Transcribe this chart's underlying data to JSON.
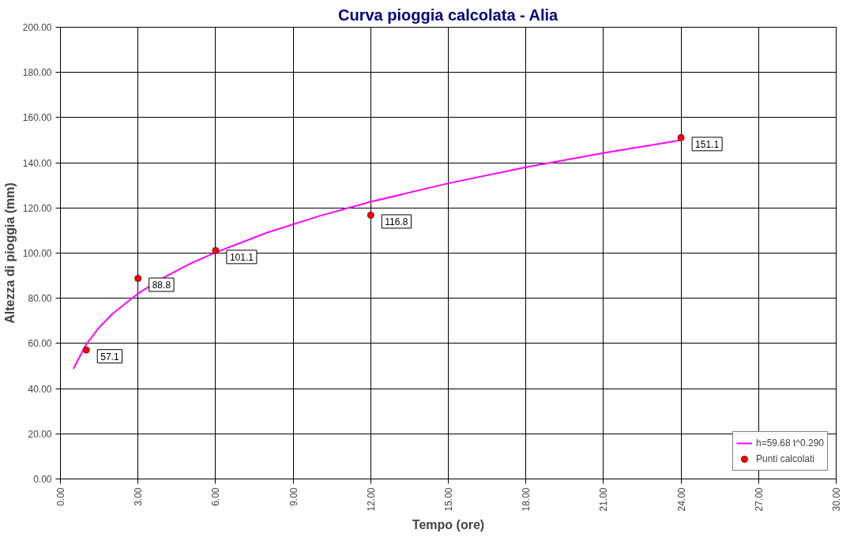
{
  "chart_data": {
    "type": "line",
    "title": "Curva pioggia calcolata - Alia",
    "xlabel": "Tempo (ore)",
    "ylabel": "Altezza di pioggia (mm)",
    "xlim": [
      0,
      30
    ],
    "ylim": [
      0,
      200
    ],
    "xticks": [
      {
        "value": 0,
        "label": "0.00"
      },
      {
        "value": 3,
        "label": "3.00"
      },
      {
        "value": 6,
        "label": "6.00"
      },
      {
        "value": 9,
        "label": "9.00"
      },
      {
        "value": 12,
        "label": "12.00"
      },
      {
        "value": 15,
        "label": "15.00"
      },
      {
        "value": 18,
        "label": "18.00"
      },
      {
        "value": 21,
        "label": "21.00"
      },
      {
        "value": 24,
        "label": "24.00"
      },
      {
        "value": 27,
        "label": "27.00"
      },
      {
        "value": 30,
        "label": "30.00"
      }
    ],
    "yticks": [
      {
        "value": 0,
        "label": "0.00"
      },
      {
        "value": 20,
        "label": "20.00"
      },
      {
        "value": 40,
        "label": "40.00"
      },
      {
        "value": 60,
        "label": "60.00"
      },
      {
        "value": 80,
        "label": "80.00"
      },
      {
        "value": 100,
        "label": "100.00"
      },
      {
        "value": 120,
        "label": "120.00"
      },
      {
        "value": 140,
        "label": "140.00"
      },
      {
        "value": 160,
        "label": "160.00"
      },
      {
        "value": 180,
        "label": "180.00"
      },
      {
        "value": 200,
        "label": "200.00"
      }
    ],
    "grid": true,
    "legend": "bottom right",
    "line_style": "solid",
    "series": [
      {
        "name": "h=59.68 t^0.290",
        "color": "#ff00ff",
        "x": [
          0.5,
          1,
          1.5,
          2,
          3,
          4,
          5,
          6,
          8,
          10,
          12,
          15,
          18,
          21,
          24
        ],
        "values": [
          48.8,
          59.7,
          67.1,
          73.0,
          82.1,
          89.2,
          95.2,
          100.3,
          109.1,
          116.4,
          122.7,
          130.9,
          138.0,
          144.3,
          150.0
        ]
      },
      {
        "name": "Punti calcolati",
        "type": "scatter",
        "marker": "circle",
        "color": "#ff0000",
        "x": [
          1,
          3,
          6,
          12,
          24
        ],
        "values": [
          57.1,
          88.8,
          101.1,
          116.8,
          151.1
        ],
        "value_labels": [
          "57.1",
          "88.8",
          "101.1",
          "116.8",
          "151.1"
        ]
      }
    ]
  }
}
